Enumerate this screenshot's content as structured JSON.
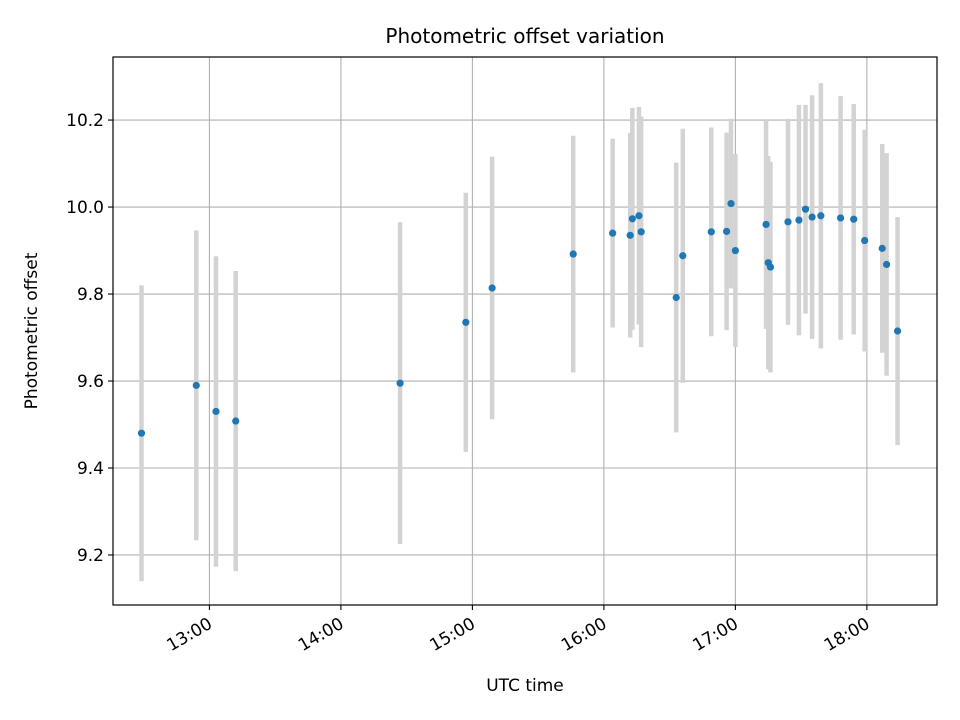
{
  "chart_data": {
    "type": "scatter",
    "title": "Photometric offset variation",
    "xlabel": "UTC time",
    "ylabel": "Photometric offset",
    "x_unit": "UTC time (HH:MM)",
    "xlim": [
      "12:16",
      "18:32"
    ],
    "ylim": [
      9.085,
      10.345
    ],
    "grid": true,
    "legend": "none",
    "x_ticks": [
      "13:00",
      "14:00",
      "15:00",
      "16:00",
      "17:00",
      "18:00"
    ],
    "y_ticks": [
      9.2,
      9.4,
      9.6,
      9.8,
      10.0,
      10.2
    ],
    "y_tick_labels": [
      "9.2",
      "9.4",
      "9.6",
      "9.8",
      "10.0",
      "10.2"
    ],
    "series": [
      {
        "marker_color": "#1f77b4",
        "errorbar_color": "#d3d3d3",
        "points": [
          {
            "x": "12:29",
            "y": 9.48,
            "err": 0.34
          },
          {
            "x": "12:54",
            "y": 9.59,
            "err": 0.356
          },
          {
            "x": "13:03",
            "y": 9.53,
            "err": 0.357
          },
          {
            "x": "13:12",
            "y": 9.508,
            "err": 0.345
          },
          {
            "x": "14:27",
            "y": 9.595,
            "err": 0.37
          },
          {
            "x": "14:57",
            "y": 9.735,
            "err": 0.298
          },
          {
            "x": "15:09",
            "y": 9.814,
            "err": 0.302
          },
          {
            "x": "15:46",
            "y": 9.892,
            "err": 0.272
          },
          {
            "x": "16:04",
            "y": 9.94,
            "err": 0.217
          },
          {
            "x": "16:12",
            "y": 9.935,
            "err": 0.235
          },
          {
            "x": "16:13",
            "y": 9.973,
            "err": 0.255
          },
          {
            "x": "16:16",
            "y": 9.98,
            "err": 0.25
          },
          {
            "x": "16:17",
            "y": 9.943,
            "err": 0.265
          },
          {
            "x": "16:33",
            "y": 9.792,
            "err": 0.31
          },
          {
            "x": "16:36",
            "y": 9.888,
            "err": 0.292
          },
          {
            "x": "16:49",
            "y": 9.943,
            "err": 0.24
          },
          {
            "x": "16:56",
            "y": 9.944,
            "err": 0.227
          },
          {
            "x": "16:58",
            "y": 10.008,
            "err": 0.195
          },
          {
            "x": "17:00",
            "y": 9.9,
            "err": 0.222
          },
          {
            "x": "17:14",
            "y": 9.96,
            "err": 0.24
          },
          {
            "x": "17:15",
            "y": 9.872,
            "err": 0.245
          },
          {
            "x": "17:16",
            "y": 9.862,
            "err": 0.242
          },
          {
            "x": "17:24",
            "y": 9.966,
            "err": 0.237
          },
          {
            "x": "17:29",
            "y": 9.97,
            "err": 0.265
          },
          {
            "x": "17:32",
            "y": 9.995,
            "err": 0.24
          },
          {
            "x": "17:35",
            "y": 9.977,
            "err": 0.28
          },
          {
            "x": "17:39",
            "y": 9.98,
            "err": 0.305
          },
          {
            "x": "17:48",
            "y": 9.975,
            "err": 0.28
          },
          {
            "x": "17:54",
            "y": 9.972,
            "err": 0.265
          },
          {
            "x": "17:59",
            "y": 9.923,
            "err": 0.255
          },
          {
            "x": "18:07",
            "y": 9.905,
            "err": 0.24
          },
          {
            "x": "18:09",
            "y": 9.868,
            "err": 0.256
          },
          {
            "x": "18:14",
            "y": 9.715,
            "err": 0.262
          }
        ]
      }
    ]
  }
}
